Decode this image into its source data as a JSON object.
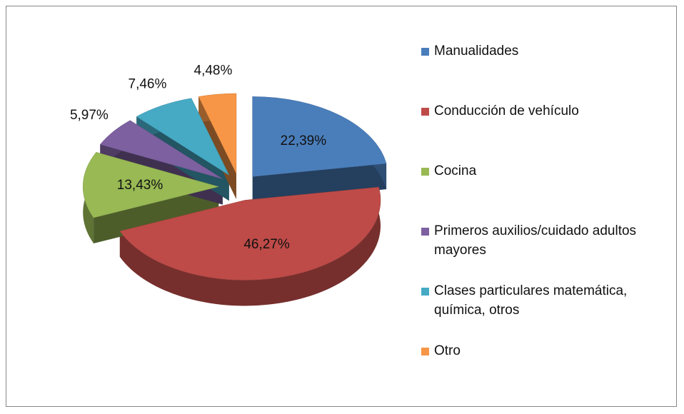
{
  "chart_data": {
    "type": "pie",
    "categories": [
      "Manualidades",
      "Conducción de vehículo",
      "Cocina",
      "Primeros auxilios/cuidado adultos mayores",
      "Clases particulares matemática, química, otros",
      "Otro"
    ],
    "values": [
      22.39,
      46.27,
      13.43,
      5.97,
      7.46,
      4.48
    ],
    "value_labels": [
      "22,39%",
      "46,27%",
      "13,43%",
      "5,97%",
      "7,46%",
      "4,48%"
    ],
    "colors": [
      "#4a7ebb",
      "#be4b48",
      "#98b954",
      "#7d60a0",
      "#46aac5",
      "#f79646"
    ],
    "legend": "right"
  }
}
